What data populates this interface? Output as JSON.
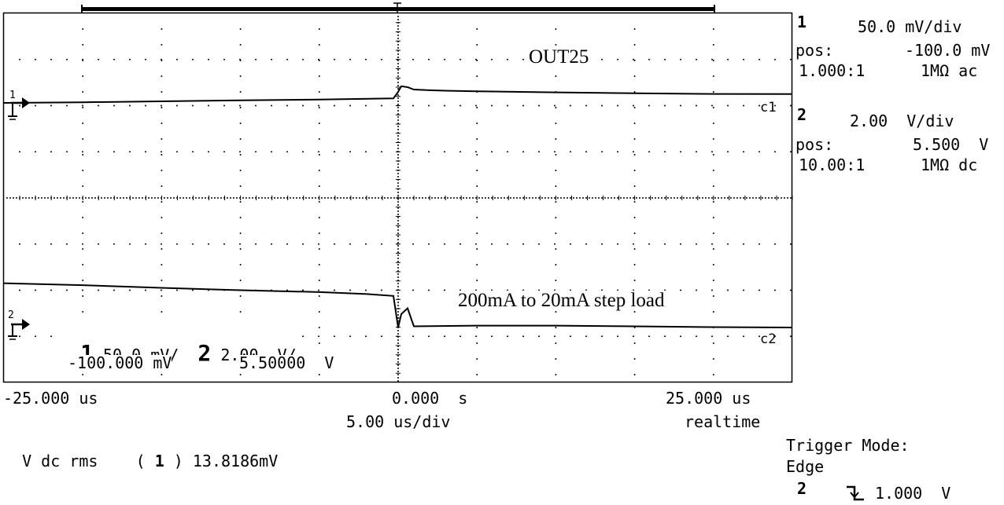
{
  "chart_data": {
    "type": "line",
    "title": "",
    "xlabel": "",
    "ylabel": "",
    "x_unit": "us",
    "xlim": [
      -25,
      25
    ],
    "grid": true,
    "annotations": [
      "OUT25",
      "200mA to 20mA step load"
    ],
    "series": [
      {
        "name": "c1",
        "channel": "1",
        "scale": "50.0 mV/div",
        "offset_mV": -100,
        "x": [
          -25,
          -20,
          -15,
          -10,
          -5,
          -0.3,
          0,
          0.2,
          0.6,
          1,
          2,
          3,
          5,
          10,
          15,
          20,
          25
        ],
        "y": [
          -100,
          -99.3,
          -98.3,
          -97.3,
          -96.3,
          -95.1,
          -88,
          -82,
          -83,
          -85.5,
          -86.3,
          -86.8,
          -87.5,
          -88.6,
          -89.5,
          -90.3,
          -90.5
        ]
      },
      {
        "name": "c2",
        "channel": "2",
        "scale": "2.00 V/div",
        "offset_V": 5.5,
        "x": [
          -25,
          -20,
          -15,
          -10,
          -5,
          -2,
          -0.3,
          0,
          0.2,
          0.6,
          1,
          5,
          10,
          15,
          20,
          25
        ],
        "y": [
          5.5,
          5.4,
          5.26,
          5.14,
          5.04,
          4.94,
          4.84,
          3.2,
          3.9,
          4.2,
          3.26,
          3.3,
          3.3,
          3.26,
          3.22,
          3.2
        ]
      }
    ]
  },
  "labels": {
    "annotation_out": "OUT25",
    "annotation_step": "200mA to 20mA step load",
    "trace1_tag": "c1",
    "trace2_tag": "c2",
    "marker1": "1",
    "marker2": "2"
  },
  "inline_readout": {
    "ch1_num": "1",
    "ch1_scale": "50.0 mV/",
    "ch2_num": "2",
    "ch2_scale": "2.00  V/",
    "ch1_offset": "-100.000 mV",
    "ch2_offset": "5.50000  V"
  },
  "timebase": {
    "left": "-25.000 us",
    "center": "0.000  s",
    "right": "25.000 us",
    "per_div": "5.00 us/div",
    "mode": "realtime"
  },
  "measurement": {
    "label": "V dc rms",
    "channel_open": "(",
    "channel": "1",
    "channel_close": ")",
    "value": "13.8186mV"
  },
  "side_panel": {
    "ch1": {
      "num": "1",
      "scale": "50.0 mV/div",
      "pos_label": "pos:",
      "pos_value": "-100.0 mV",
      "probe": "1.000:1",
      "coupling": "1MΩ ac"
    },
    "ch2": {
      "num": "2",
      "scale": "2.00  V/div",
      "pos_label": "pos:",
      "pos_value": "5.500  V",
      "probe": "10.00:1",
      "coupling": "1MΩ dc"
    },
    "trigger": {
      "mode_label": "Trigger Mode:",
      "mode_value": "Edge",
      "source": "2",
      "level": "1.000  V"
    }
  },
  "colors": {
    "background": "#ffffff",
    "trace": "#000000",
    "grid": "#000000"
  }
}
